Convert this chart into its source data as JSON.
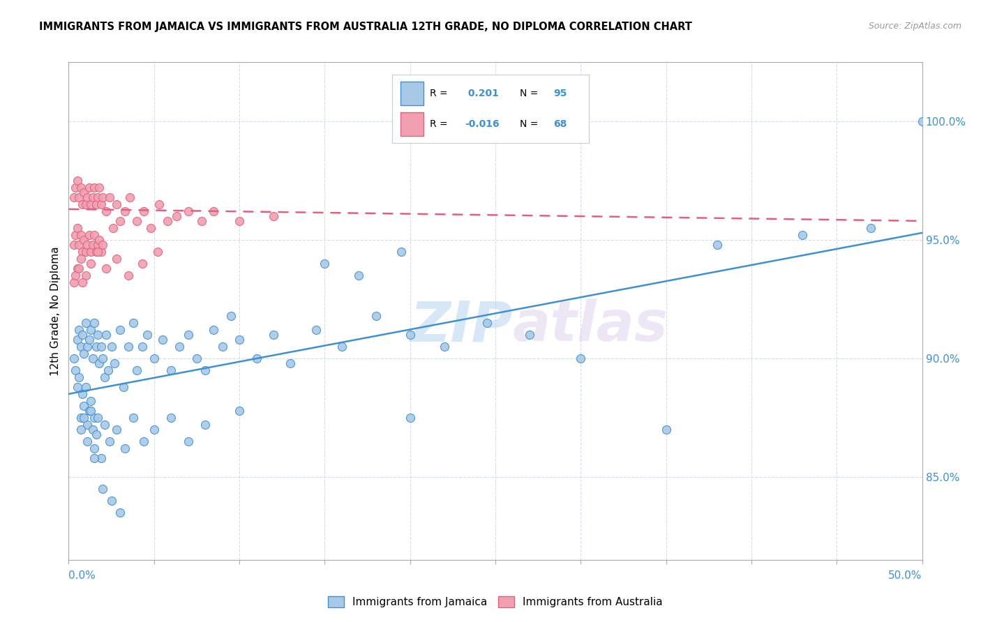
{
  "title": "IMMIGRANTS FROM JAMAICA VS IMMIGRANTS FROM AUSTRALIA 12TH GRADE, NO DIPLOMA CORRELATION CHART",
  "source": "Source: ZipAtlas.com",
  "ylabel": "12th Grade, No Diploma",
  "y_ticks": [
    "85.0%",
    "90.0%",
    "95.0%",
    "100.0%"
  ],
  "y_tick_vals": [
    0.85,
    0.9,
    0.95,
    1.0
  ],
  "x_range": [
    0.0,
    0.5
  ],
  "y_range": [
    0.815,
    1.025
  ],
  "color_blue": "#a8c8e8",
  "color_pink": "#f0a0b0",
  "line_blue": "#4090d0",
  "line_pink": "#e06080",
  "watermark_zip": "ZIP",
  "watermark_atlas": "atlas",
  "blue_line_x": [
    0.0,
    0.5
  ],
  "blue_line_y": [
    0.885,
    0.953
  ],
  "pink_line_x": [
    0.0,
    0.5
  ],
  "pink_line_y": [
    0.963,
    0.958
  ],
  "legend_blue_R": " 0.201",
  "legend_blue_N": "95",
  "legend_pink_R": "-0.016",
  "legend_pink_N": "68",
  "blue_scatter_x": [
    0.003,
    0.004,
    0.005,
    0.005,
    0.006,
    0.006,
    0.007,
    0.007,
    0.008,
    0.008,
    0.009,
    0.009,
    0.01,
    0.01,
    0.011,
    0.011,
    0.012,
    0.012,
    0.013,
    0.013,
    0.014,
    0.014,
    0.015,
    0.015,
    0.016,
    0.016,
    0.017,
    0.018,
    0.019,
    0.02,
    0.021,
    0.022,
    0.023,
    0.025,
    0.027,
    0.03,
    0.032,
    0.035,
    0.038,
    0.04,
    0.043,
    0.046,
    0.05,
    0.055,
    0.06,
    0.065,
    0.07,
    0.075,
    0.08,
    0.085,
    0.09,
    0.095,
    0.1,
    0.11,
    0.12,
    0.13,
    0.145,
    0.16,
    0.18,
    0.2,
    0.22,
    0.245,
    0.27,
    0.3,
    0.15,
    0.17,
    0.195,
    0.38,
    0.43,
    0.47,
    0.5,
    0.007,
    0.009,
    0.011,
    0.013,
    0.015,
    0.017,
    0.019,
    0.021,
    0.024,
    0.028,
    0.033,
    0.038,
    0.044,
    0.05,
    0.06,
    0.07,
    0.08,
    0.1,
    0.2,
    0.35,
    0.015,
    0.02,
    0.025,
    0.03
  ],
  "blue_scatter_y": [
    0.9,
    0.895,
    0.908,
    0.888,
    0.912,
    0.892,
    0.905,
    0.875,
    0.91,
    0.885,
    0.902,
    0.88,
    0.915,
    0.888,
    0.905,
    0.872,
    0.908,
    0.878,
    0.912,
    0.882,
    0.9,
    0.87,
    0.915,
    0.875,
    0.905,
    0.868,
    0.91,
    0.898,
    0.905,
    0.9,
    0.892,
    0.91,
    0.895,
    0.905,
    0.898,
    0.912,
    0.888,
    0.905,
    0.915,
    0.895,
    0.905,
    0.91,
    0.9,
    0.908,
    0.895,
    0.905,
    0.91,
    0.9,
    0.895,
    0.912,
    0.905,
    0.918,
    0.908,
    0.9,
    0.91,
    0.898,
    0.912,
    0.905,
    0.918,
    0.91,
    0.905,
    0.915,
    0.91,
    0.9,
    0.94,
    0.935,
    0.945,
    0.948,
    0.952,
    0.955,
    1.0,
    0.87,
    0.875,
    0.865,
    0.878,
    0.862,
    0.875,
    0.858,
    0.872,
    0.865,
    0.87,
    0.862,
    0.875,
    0.865,
    0.87,
    0.875,
    0.865,
    0.872,
    0.878,
    0.875,
    0.87,
    0.858,
    0.845,
    0.84,
    0.835
  ],
  "pink_scatter_x": [
    0.003,
    0.003,
    0.004,
    0.004,
    0.005,
    0.005,
    0.006,
    0.006,
    0.007,
    0.007,
    0.008,
    0.008,
    0.009,
    0.009,
    0.01,
    0.01,
    0.011,
    0.011,
    0.012,
    0.012,
    0.013,
    0.013,
    0.014,
    0.014,
    0.015,
    0.015,
    0.016,
    0.016,
    0.017,
    0.017,
    0.018,
    0.018,
    0.019,
    0.019,
    0.02,
    0.02,
    0.022,
    0.024,
    0.026,
    0.028,
    0.03,
    0.033,
    0.036,
    0.04,
    0.044,
    0.048,
    0.053,
    0.058,
    0.063,
    0.07,
    0.078,
    0.085,
    0.1,
    0.12,
    0.005,
    0.007,
    0.01,
    0.013,
    0.017,
    0.022,
    0.028,
    0.035,
    0.043,
    0.052,
    0.003,
    0.004,
    0.006,
    0.008
  ],
  "pink_scatter_y": [
    0.968,
    0.948,
    0.972,
    0.952,
    0.975,
    0.955,
    0.968,
    0.948,
    0.972,
    0.952,
    0.965,
    0.945,
    0.97,
    0.95,
    0.965,
    0.945,
    0.968,
    0.948,
    0.972,
    0.952,
    0.965,
    0.945,
    0.968,
    0.948,
    0.972,
    0.952,
    0.965,
    0.945,
    0.968,
    0.948,
    0.972,
    0.95,
    0.965,
    0.945,
    0.968,
    0.948,
    0.962,
    0.968,
    0.955,
    0.965,
    0.958,
    0.962,
    0.968,
    0.958,
    0.962,
    0.955,
    0.965,
    0.958,
    0.96,
    0.962,
    0.958,
    0.962,
    0.958,
    0.96,
    0.938,
    0.942,
    0.935,
    0.94,
    0.945,
    0.938,
    0.942,
    0.935,
    0.94,
    0.945,
    0.932,
    0.935,
    0.938,
    0.932
  ]
}
